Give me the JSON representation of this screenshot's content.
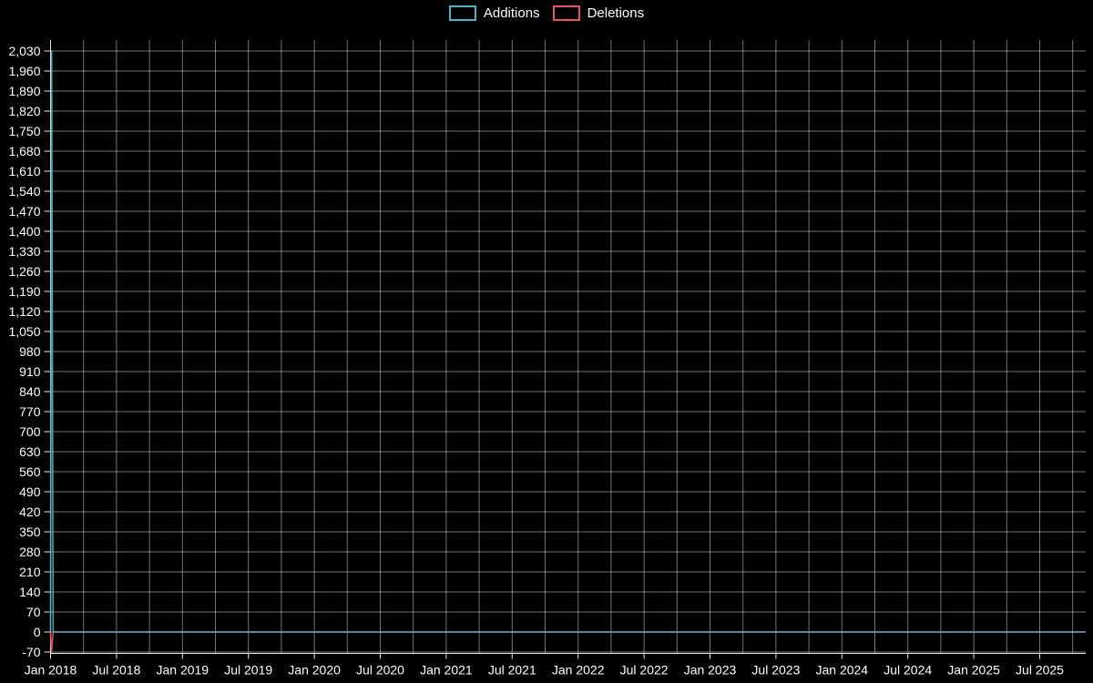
{
  "page": {
    "background_color": "#000000",
    "text_color": "#ffffff",
    "grid_color": "rgba(255,255,255,0.45)",
    "axis_color": "#e8e8e8"
  },
  "chart_data": {
    "type": "line",
    "title": "",
    "xlabel": "",
    "ylabel": "",
    "legend_position": "top-center",
    "x_tick_labels": [
      "Jan 2018",
      "Jul 2018",
      "Jan 2019",
      "Jul 2019",
      "Jan 2020",
      "Jul 2020",
      "Jan 2021",
      "Jul 2021",
      "Jan 2022",
      "Jul 2022",
      "Jan 2023",
      "Jul 2023",
      "Jan 2024",
      "Jul 2024",
      "Jan 2025",
      "Jul 2025"
    ],
    "x_tick_interval_months": 6,
    "y_tick_labels": [
      "-70",
      "0",
      "70",
      "140",
      "210",
      "280",
      "350",
      "420",
      "490",
      "560",
      "630",
      "700",
      "770",
      "840",
      "910",
      "980",
      "1,050",
      "1,120",
      "1,190",
      "1,260",
      "1,330",
      "1,400",
      "1,470",
      "1,540",
      "1,610",
      "1,680",
      "1,750",
      "1,820",
      "1,890",
      "1,960",
      "2,030"
    ],
    "y_tick_values": [
      -70,
      0,
      70,
      140,
      210,
      280,
      350,
      420,
      490,
      560,
      630,
      700,
      770,
      840,
      910,
      980,
      1050,
      1120,
      1190,
      1260,
      1330,
      1400,
      1470,
      1540,
      1610,
      1680,
      1750,
      1820,
      1890,
      1960,
      2030
    ],
    "ylim": [
      -70,
      2030
    ],
    "y_tick_step": 70,
    "grid": {
      "horizontal": true,
      "vertical": true,
      "vertical_interval_months": 3
    },
    "series": [
      {
        "name": "Additions",
        "color": "#4fb3bf",
        "baseline_value": 0,
        "peak": {
          "x": "Jan 2018",
          "value": 2030
        }
      },
      {
        "name": "Deletions",
        "color": "#e25563",
        "baseline_value": 0,
        "peak": {
          "x": "Jan 2018",
          "value": -70
        }
      }
    ]
  }
}
